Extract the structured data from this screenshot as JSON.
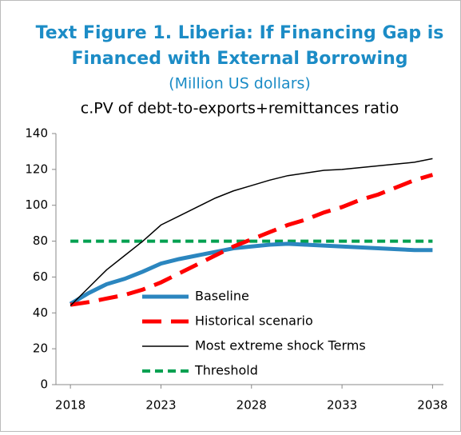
{
  "chart_data": {
    "type": "line",
    "title": [
      "Text Figure 1. Liberia: If Financing Gap is",
      "Financed with External Borrowing"
    ],
    "subtitle": "(Million US dollars)",
    "chart_title": "c.PV of debt-to-exports+remittances ratio",
    "x": [
      2018,
      2019,
      2020,
      2021,
      2022,
      2023,
      2024,
      2025,
      2026,
      2027,
      2028,
      2029,
      2030,
      2031,
      2032,
      2033,
      2034,
      2035,
      2036,
      2037,
      2038
    ],
    "xlim": [
      2017.2,
      2038.6
    ],
    "xticks": [
      2018,
      2023,
      2028,
      2033,
      2038
    ],
    "ylim": [
      0,
      140
    ],
    "yticks": [
      0,
      20,
      40,
      60,
      80,
      100,
      120,
      140
    ],
    "series": [
      {
        "name": "Baseline",
        "color": "#2b86bf",
        "style": "solid",
        "width": 5,
        "values": [
          45,
          51,
          56,
          59,
          63,
          67.5,
          70,
          72,
          74,
          76,
          77,
          78,
          78.5,
          78,
          77.5,
          77,
          76.5,
          76,
          75.5,
          75,
          75
        ]
      },
      {
        "name": "Historical scenario",
        "color": "#ff0000",
        "style": "dashed",
        "width": 5,
        "values": [
          44.5,
          46,
          48,
          50,
          53,
          57,
          62,
          67,
          72,
          77,
          81,
          85,
          89,
          92,
          96,
          99,
          103,
          106,
          110,
          114,
          117
        ]
      },
      {
        "name": "Most extreme shock Terms",
        "color": "#000000",
        "style": "solid",
        "width": 1.5,
        "values": [
          44,
          54,
          64,
          72,
          80,
          89,
          94,
          99,
          104,
          108,
          111,
          114,
          116.5,
          118,
          119.5,
          120,
          121,
          122,
          123,
          124,
          126
        ]
      },
      {
        "name": "Threshold",
        "color": "#00a050",
        "style": "dotted",
        "width": 4,
        "values": [
          80,
          80,
          80,
          80,
          80,
          80,
          80,
          80,
          80,
          80,
          80,
          80,
          80,
          80,
          80,
          80,
          80,
          80,
          80,
          80,
          80
        ]
      }
    ]
  }
}
